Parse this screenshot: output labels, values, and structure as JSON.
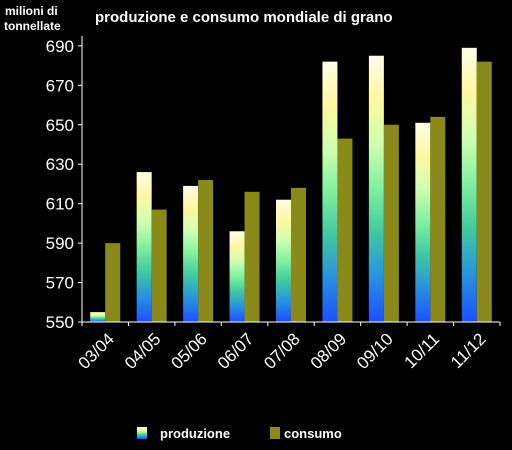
{
  "chart_data": {
    "type": "bar",
    "title": "produzione e consumo mondiale di grano",
    "ylabel_lines": [
      "milioni di",
      "tonnellate"
    ],
    "xlabel": "",
    "categories": [
      "03/04",
      "04/05",
      "05/06",
      "06/07",
      "07/08",
      "08/09",
      "09/10",
      "10/11",
      "11/12"
    ],
    "ylim": [
      550,
      695
    ],
    "yticks": [
      550,
      570,
      590,
      610,
      630,
      650,
      670,
      690
    ],
    "grid": false,
    "legend_position": "bottom",
    "series": [
      {
        "name": "produzione",
        "values": [
          555,
          626,
          619,
          596,
          612,
          682,
          685,
          651,
          689
        ]
      },
      {
        "name": "consumo",
        "values": [
          590,
          607,
          622,
          616,
          618,
          643,
          650,
          654,
          682
        ]
      }
    ],
    "colors": {
      "background": "#000000",
      "text": "#ffffff",
      "axis": "#ffffff",
      "consumo": "#8a8a1a",
      "produzione_gradient": [
        "#fffde8",
        "#fff7a0",
        "#cfffb0",
        "#7ff0a0",
        "#3fc8a0",
        "#2890e0",
        "#1a50ff"
      ]
    }
  }
}
